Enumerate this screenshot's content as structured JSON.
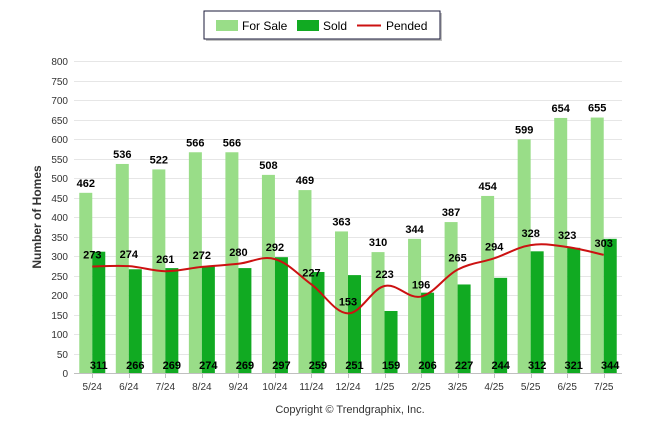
{
  "chart_data": {
    "type": "bar",
    "categories": [
      "5/24",
      "6/24",
      "7/24",
      "8/24",
      "9/24",
      "10/24",
      "11/24",
      "12/24",
      "1/25",
      "2/25",
      "3/25",
      "4/25",
      "5/25",
      "6/25",
      "7/25"
    ],
    "series": [
      {
        "name": "For Sale",
        "type": "bar",
        "color": "#99dd88",
        "values": [
          462,
          536,
          522,
          566,
          566,
          508,
          469,
          363,
          310,
          344,
          387,
          454,
          599,
          654,
          655
        ]
      },
      {
        "name": "Sold",
        "type": "bar",
        "color": "#11aa22",
        "values": [
          311,
          266,
          269,
          274,
          269,
          297,
          259,
          251,
          159,
          206,
          227,
          244,
          312,
          321,
          344
        ]
      },
      {
        "name": "Pended",
        "type": "line",
        "color": "#cc1111",
        "values": [
          273,
          274,
          261,
          272,
          280,
          292,
          227,
          153,
          223,
          196,
          265,
          294,
          328,
          323,
          303
        ]
      }
    ],
    "title": "",
    "xlabel": "",
    "ylabel": "Number of Homes",
    "ylim": [
      0,
      800
    ],
    "yticks": [
      0,
      50,
      100,
      150,
      200,
      250,
      300,
      350,
      400,
      450,
      500,
      550,
      600,
      650,
      700,
      750,
      800
    ],
    "grid": true,
    "legend_position": "top-center"
  },
  "credit": "Copyright © Trendgraphix, Inc."
}
